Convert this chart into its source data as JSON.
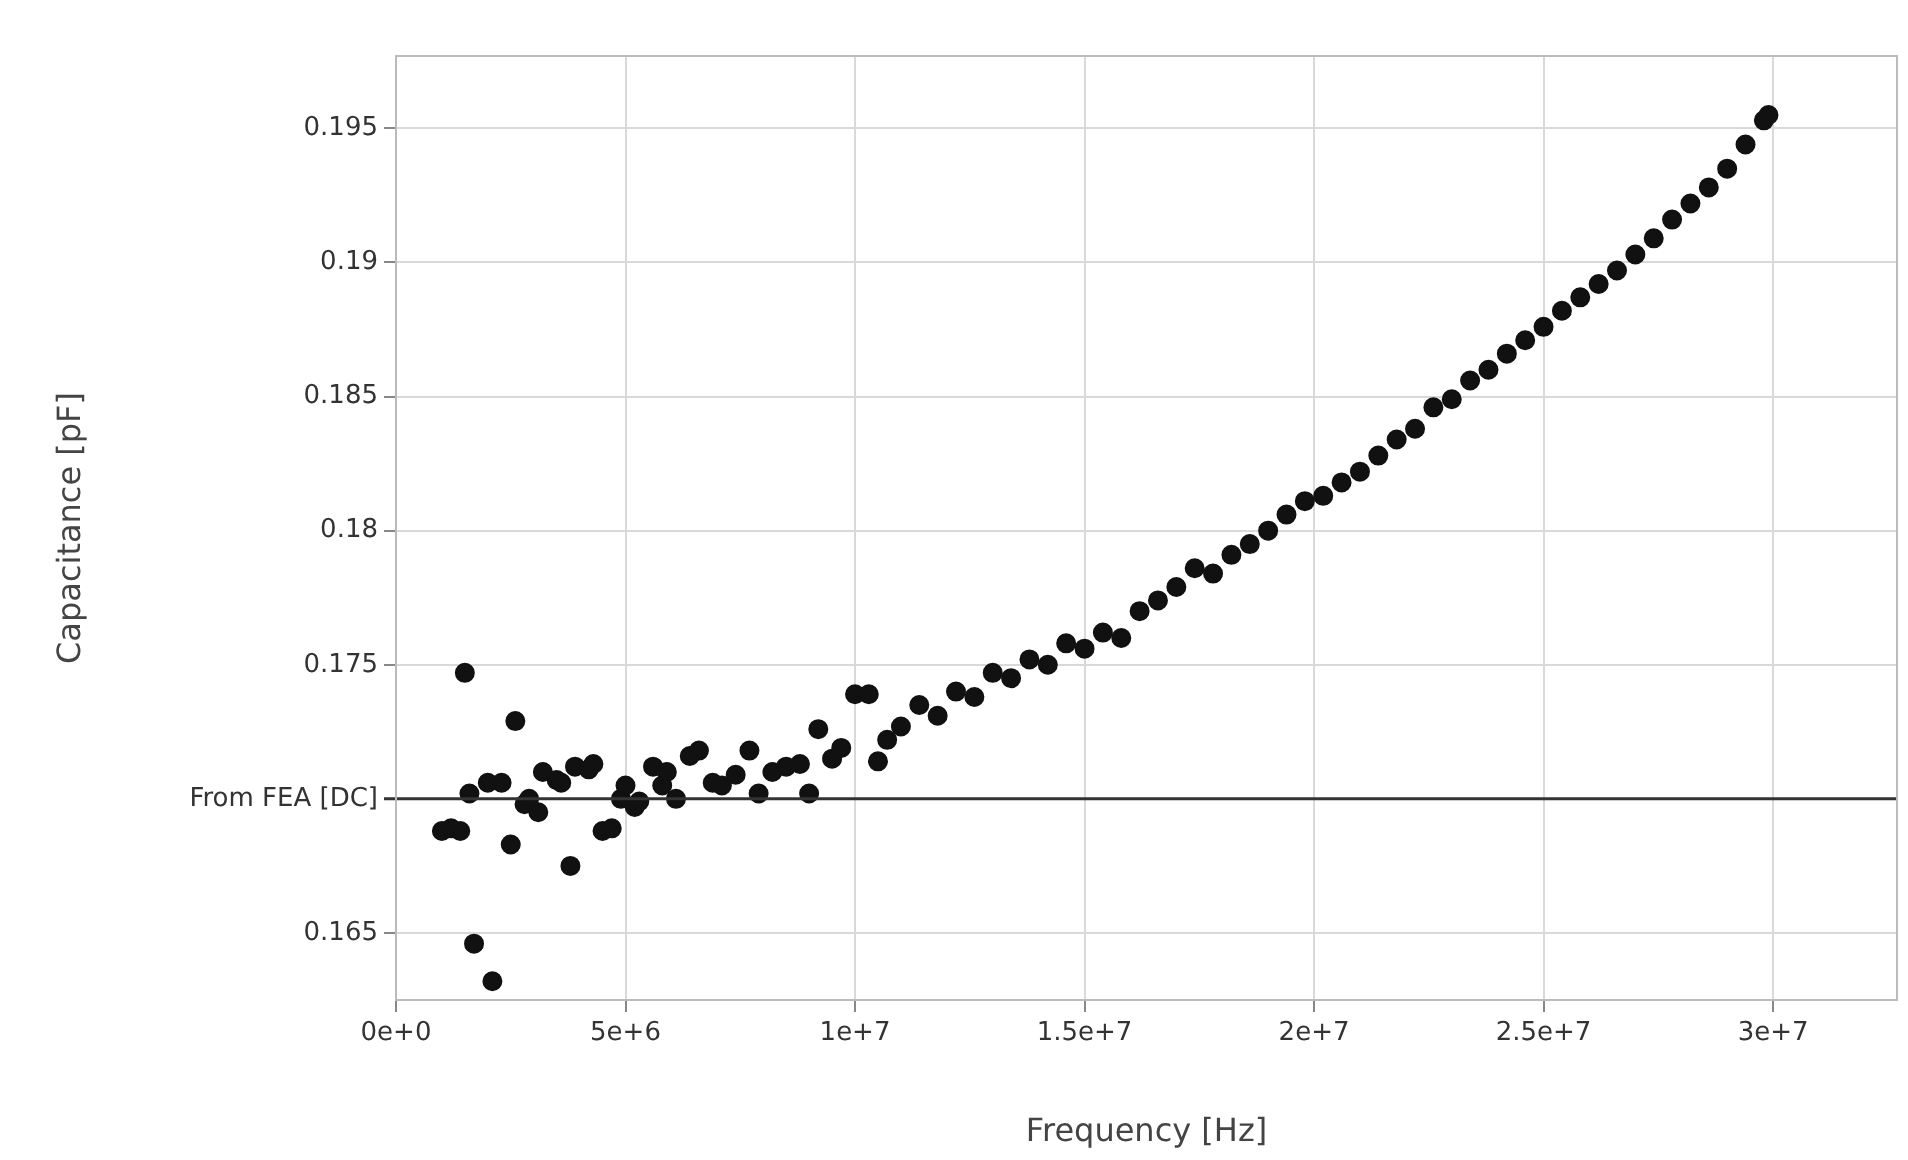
{
  "chart_data": {
    "type": "scatter",
    "xlabel": "Frequency [Hz]",
    "ylabel": "Capacitance [pF]",
    "xlim": [
      0,
      32700000
    ],
    "ylim": [
      0.1625,
      0.1977
    ],
    "xticks": [
      {
        "value": 0,
        "label": "0e+0"
      },
      {
        "value": 5000000,
        "label": "5e+6"
      },
      {
        "value": 10000000,
        "label": "1e+7"
      },
      {
        "value": 15000000,
        "label": "1.5e+7"
      },
      {
        "value": 20000000,
        "label": "2e+7"
      },
      {
        "value": 25000000,
        "label": "2.5e+7"
      },
      {
        "value": 30000000,
        "label": "3e+7"
      }
    ],
    "yticks": [
      0.165,
      {
        "value": 0.17,
        "label": "From FEA [DC]"
      },
      0.175,
      0.18,
      0.185,
      0.19,
      0.195
    ],
    "grid": true,
    "legend": false,
    "marker": "circle",
    "ref_lines": [
      {
        "axis": "y",
        "value": 0.17,
        "color": "#333333"
      }
    ],
    "x": [
      1000000,
      1200000,
      1400000,
      1500000,
      1600000,
      1700000,
      2000000,
      2100000,
      2300000,
      2500000,
      2600000,
      2800000,
      2900000,
      3100000,
      3200000,
      3500000,
      3600000,
      3800000,
      3900000,
      4200000,
      4300000,
      4500000,
      4700000,
      4900000,
      5000000,
      5200000,
      5300000,
      5600000,
      5800000,
      5900000,
      6100000,
      6400000,
      6600000,
      6900000,
      7100000,
      7400000,
      7700000,
      7900000,
      8200000,
      8500000,
      8800000,
      9000000,
      9200000,
      9500000,
      9700000,
      10000000,
      10300000,
      10500000,
      10700000,
      11000000,
      11400000,
      11800000,
      12200000,
      12600000,
      13000000,
      13400000,
      13800000,
      14200000,
      14600000,
      15000000,
      15400000,
      15800000,
      16200000,
      16600000,
      17000000,
      17400000,
      17800000,
      18200000,
      18600000,
      19000000,
      19400000,
      19800000,
      20200000,
      20600000,
      21000000,
      21400000,
      21800000,
      22200000,
      22600000,
      23000000,
      23400000,
      23800000,
      24200000,
      24600000,
      25000000,
      25400000,
      25800000,
      26200000,
      26600000,
      27000000,
      27400000,
      27800000,
      28200000,
      28600000,
      29000000,
      29400000,
      29800000,
      29900000
    ],
    "series": [
      {
        "color": "#111111",
        "values": [
          0.1688,
          0.1689,
          0.1688,
          0.1747,
          0.1702,
          0.1646,
          0.1706,
          0.1632,
          0.1706,
          0.1683,
          0.1729,
          0.1698,
          0.17,
          0.1695,
          0.171,
          0.1707,
          0.1706,
          0.1675,
          0.1712,
          0.1711,
          0.1713,
          0.1688,
          0.1689,
          0.17,
          0.1705,
          0.1697,
          0.1699,
          0.1712,
          0.1705,
          0.171,
          0.17,
          0.1716,
          0.1718,
          0.1706,
          0.1705,
          0.1709,
          0.1718,
          0.1702,
          0.171,
          0.1712,
          0.1713,
          0.1702,
          0.1726,
          0.1715,
          0.1719,
          0.1739,
          0.1739,
          0.1714,
          0.1722,
          0.1727,
          0.1735,
          0.1731,
          0.174,
          0.1738,
          0.1747,
          0.1745,
          0.1752,
          0.175,
          0.1758,
          0.1756,
          0.1762,
          0.176,
          0.177,
          0.1774,
          0.1779,
          0.1786,
          0.1784,
          0.1791,
          0.1795,
          0.18,
          0.1806,
          0.1811,
          0.1813,
          0.1818,
          0.1822,
          0.1828,
          0.1834,
          0.1838,
          0.1846,
          0.1849,
          0.1856,
          0.186,
          0.1866,
          0.1871,
          0.1876,
          0.1882,
          0.1887,
          0.1892,
          0.1897,
          0.1903,
          0.1909,
          0.1916,
          0.1922,
          0.1928,
          0.1935,
          0.1944,
          0.1953,
          0.1955
        ]
      }
    ]
  }
}
